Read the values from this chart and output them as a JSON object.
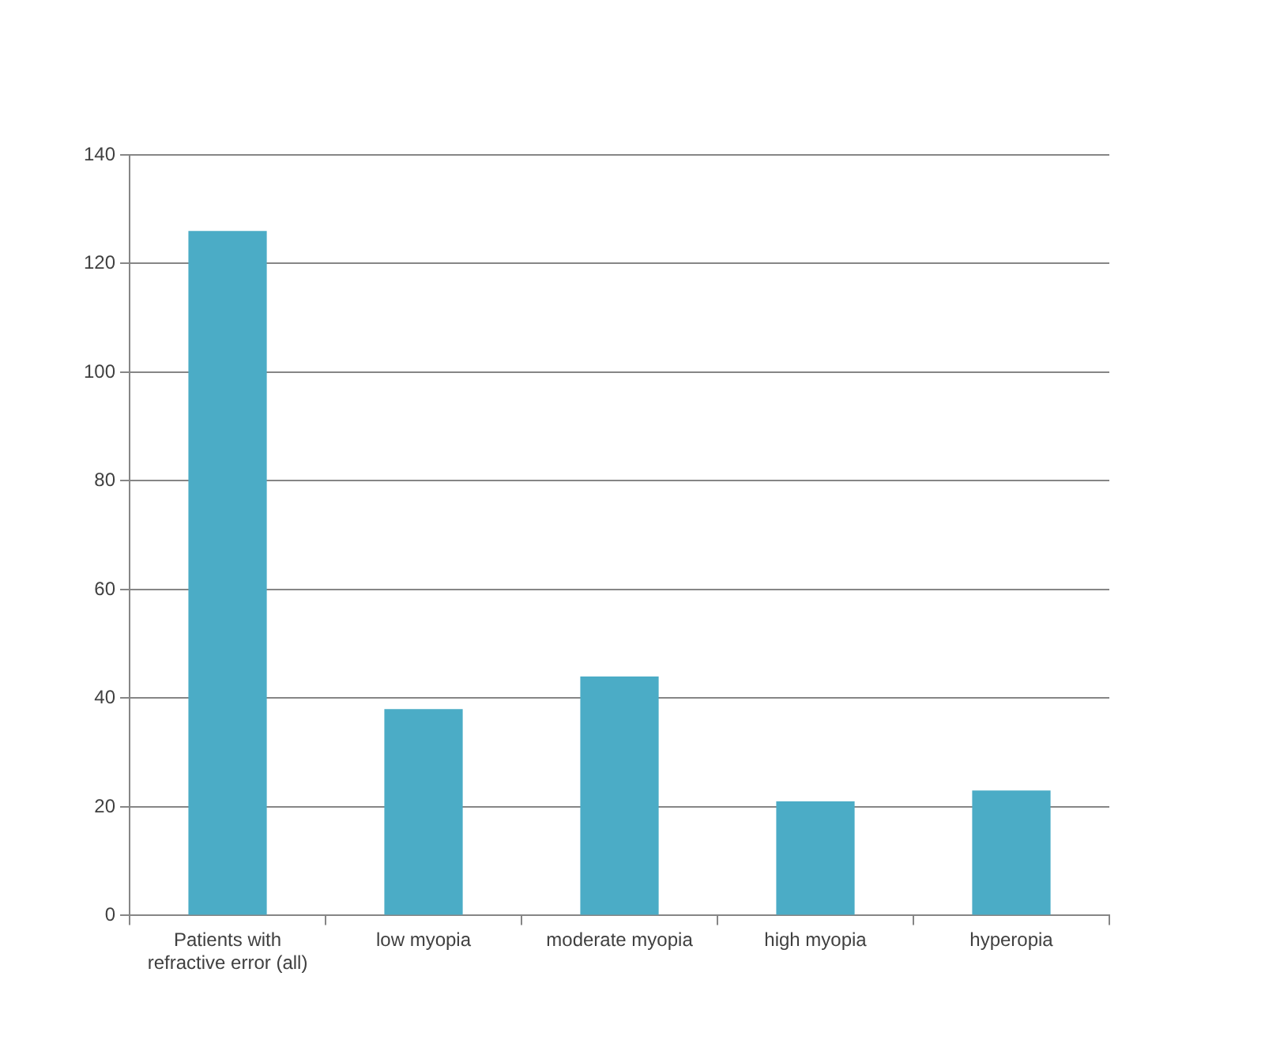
{
  "chart_data": {
    "type": "bar",
    "categories": [
      "Patients with refractive error (all)",
      "low myopia",
      "moderate myopia",
      "high myopia",
      "hyperopia"
    ],
    "values": [
      126,
      38,
      44,
      21,
      23
    ],
    "color": "#4bacc6",
    "ylim": [
      0,
      140
    ],
    "yticks": [
      0,
      20,
      40,
      60,
      80,
      100,
      120,
      140
    ],
    "grid": "y",
    "legend": false
  }
}
